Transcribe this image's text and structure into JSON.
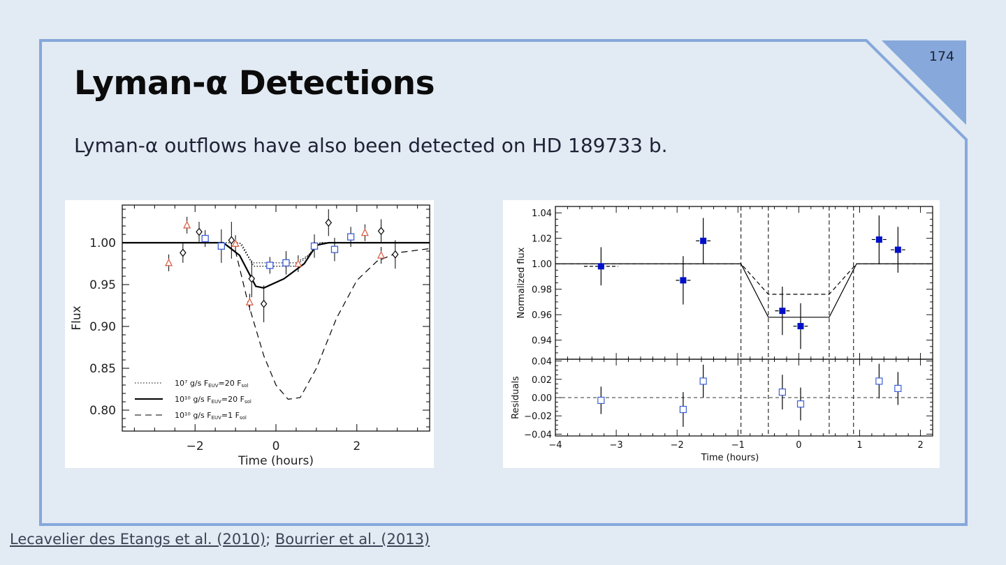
{
  "slide": {
    "number": "174",
    "title": "Lyman-α Detections",
    "subtitle": "Lyman-α outflows have also been detected on HD 189733 b.",
    "citations": [
      {
        "text": "Lecavelier des Etangs et al. (2010)"
      },
      {
        "text": "Bourrier et al. (2013)"
      }
    ],
    "citation_separator": ";"
  },
  "colors": {
    "background": "#e2eaf3",
    "frame": "#86a8db",
    "corner": "#86a8db",
    "triangle_markers": "#d9624a",
    "square_markers": "#3c5fd6",
    "filled_squares": "#0010c8"
  },
  "chart_data": [
    {
      "type": "scatter",
      "xlabel": "Time   (hours)",
      "ylabel": "Flux",
      "xlim": [
        -3.8,
        3.8
      ],
      "ylim": [
        0.775,
        1.045
      ],
      "xticks": [
        -2,
        0,
        2
      ],
      "xtick_labels": [
        "−2",
        "0",
        "2"
      ],
      "yticks": [
        0.8,
        0.85,
        0.9,
        0.95,
        1.0
      ],
      "ytick_labels": [
        "0.80",
        "0.85",
        "0.90",
        "0.95",
        "1.00"
      ],
      "legend": {
        "placement": "bottom-left",
        "entries": [
          {
            "style": "dotted",
            "text": "10⁷ g/s F",
            "sub": "EUV",
            "mid": "=20 F",
            "sub2": "sol"
          },
          {
            "style": "solid",
            "text": "10¹⁰ g/s F",
            "sub": "EUV",
            "mid": "=20 F",
            "sub2": "sol"
          },
          {
            "style": "dashed",
            "text": "10¹⁰ g/s F",
            "sub": "EUV",
            "mid": "=1 F",
            "sub2": "sol"
          }
        ]
      },
      "model_curves": [
        {
          "style": "solid",
          "x": [
            -3.8,
            -1.3,
            -0.9,
            -0.5,
            -0.3,
            0.2,
            0.7,
            1.0,
            1.3,
            3.8
          ],
          "y": [
            1.0,
            1.0,
            0.985,
            0.948,
            0.946,
            0.957,
            0.975,
            0.997,
            1.0,
            1.0
          ]
        },
        {
          "style": "dotted",
          "x": [
            -3.8,
            -1.1,
            -0.9,
            -0.6,
            0.5,
            0.8,
            1.1,
            3.8
          ],
          "y": [
            1.0,
            1.0,
            1.0,
            0.976,
            0.976,
            0.985,
            1.0,
            1.0
          ]
        },
        {
          "style": "dotted",
          "x": [
            -3.8,
            -1.05,
            -0.85,
            -0.55,
            0.45,
            0.75,
            1.05,
            3.8
          ],
          "y": [
            1.0,
            1.0,
            0.999,
            0.972,
            0.972,
            0.982,
            1.0,
            1.0
          ]
        },
        {
          "style": "dashed",
          "x": [
            -3.8,
            -1.3,
            -1.0,
            -0.7,
            -0.3,
            0.0,
            0.3,
            0.6,
            1.0,
            1.5,
            2.0,
            2.5,
            3.0,
            3.8
          ],
          "y": [
            1.0,
            1.0,
            0.99,
            0.93,
            0.865,
            0.83,
            0.813,
            0.815,
            0.85,
            0.91,
            0.955,
            0.978,
            0.988,
            0.993
          ]
        }
      ],
      "series": [
        {
          "marker": "diamond",
          "x": [
            -2.3,
            -1.9,
            -1.1,
            -0.6,
            -0.3,
            1.3,
            2.6,
            2.95
          ],
          "y": [
            0.988,
            1.013,
            1.003,
            0.957,
            0.927,
            1.024,
            1.014,
            0.986
          ],
          "err": [
            0.012,
            0.012,
            0.022,
            0.022,
            0.022,
            0.016,
            0.014,
            0.017
          ]
        },
        {
          "marker": "triangle",
          "x": [
            -2.65,
            -2.2,
            -1.0,
            -0.65,
            0.55,
            0.95,
            2.2,
            2.6
          ],
          "y": [
            0.976,
            1.021,
            0.999,
            0.929,
            0.975,
            0.997,
            1.012,
            0.985
          ],
          "err": [
            0.01,
            0.01,
            0.01,
            0.01,
            0.01,
            0.01,
            0.01,
            0.01
          ]
        },
        {
          "marker": "open-square",
          "x": [
            -1.75,
            -1.35,
            -0.15,
            0.25,
            0.95,
            1.45,
            1.85
          ],
          "y": [
            1.005,
            0.996,
            0.973,
            0.976,
            0.996,
            0.992,
            1.007
          ],
          "err": [
            0.01,
            0.02,
            0.01,
            0.014,
            0.014,
            0.014,
            0.012
          ]
        }
      ]
    },
    {
      "type": "scatter",
      "top_panel": {
        "ylabel": "Normalized flux",
        "ylim": [
          0.925,
          1.045
        ],
        "yticks": [
          0.94,
          0.96,
          0.98,
          1.0,
          1.02,
          1.04
        ],
        "ytick_labels": [
          "0.94",
          "0.96",
          "0.98",
          "1.00",
          "1.02",
          "1.04"
        ],
        "points": {
          "x": [
            -3.25,
            -1.9,
            -1.57,
            -0.27,
            0.03,
            1.32,
            1.63
          ],
          "y": [
            0.998,
            0.987,
            1.018,
            0.963,
            0.951,
            1.019,
            1.011
          ],
          "err": [
            0.015,
            0.019,
            0.018,
            0.019,
            0.018,
            0.019,
            0.018
          ],
          "xerr": [
            0.28,
            0.12,
            0.12,
            0.12,
            0.12,
            0.12,
            0.12
          ]
        },
        "model_solid": {
          "x": [
            -4,
            -0.95,
            -0.5,
            0.5,
            0.95,
            2.2
          ],
          "y": [
            1.0,
            1.0,
            0.958,
            0.958,
            1.0,
            1.0
          ]
        },
        "model_dashed": {
          "x": [
            -4,
            -0.95,
            -0.5,
            0.5,
            0.95,
            2.2
          ],
          "y": [
            1.0,
            1.0,
            0.976,
            0.976,
            1.0,
            1.0
          ]
        }
      },
      "bottom_panel": {
        "ylabel": "Residuals",
        "ylim": [
          -0.042,
          0.042
        ],
        "yticks": [
          -0.04,
          -0.02,
          0.0,
          0.02,
          0.04
        ],
        "ytick_labels": [
          "−0.04",
          "−0.02",
          "0.00",
          "0.02",
          "0.04"
        ],
        "points": {
          "x": [
            -3.25,
            -1.9,
            -1.57,
            -0.27,
            0.03,
            1.32,
            1.63
          ],
          "y": [
            -0.003,
            -0.013,
            0.018,
            0.006,
            -0.007,
            0.018,
            0.01
          ],
          "err": [
            0.015,
            0.019,
            0.018,
            0.019,
            0.018,
            0.019,
            0.018
          ]
        }
      },
      "xlabel": "Time (hours)",
      "xlim": [
        -4,
        2.2
      ],
      "xticks": [
        -4,
        -3,
        -2,
        -1,
        0,
        1,
        2
      ],
      "xtick_labels": [
        "−4",
        "−3",
        "−2",
        "−1",
        "0",
        "1",
        "2"
      ],
      "vertical_dashed_lines": [
        -0.95,
        -0.5,
        0.5,
        0.9
      ]
    }
  ]
}
